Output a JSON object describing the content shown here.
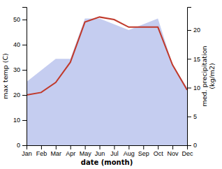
{
  "chart_data": {
    "type": "line",
    "xlabel": "date (month)",
    "ylabel": "max temp (C)",
    "y2label": "med. precipitation\n(kg/m2)",
    "categories": [
      "Jan",
      "Feb",
      "Mar",
      "Apr",
      "May",
      "Jun",
      "Jul",
      "Aug",
      "Sep",
      "Oct",
      "Nov",
      "Dec"
    ],
    "series": [
      {
        "type": "area",
        "axis": "y2",
        "color": "#c5cdf0",
        "values": [
          11,
          13,
          15,
          15,
          22,
          22,
          21,
          20,
          21,
          22,
          14,
          10
        ]
      },
      {
        "type": "line",
        "color": "#c0392b",
        "values": [
          20,
          21,
          25,
          33,
          49,
          51,
          50,
          47,
          47,
          47,
          32,
          22
        ]
      }
    ],
    "ylim": [
      0,
      55
    ],
    "yticks": [
      0,
      10,
      20,
      30,
      40,
      50
    ],
    "y2lim": [
      0,
      24
    ],
    "y2ticks": [
      0,
      5,
      10,
      15,
      20
    ]
  }
}
